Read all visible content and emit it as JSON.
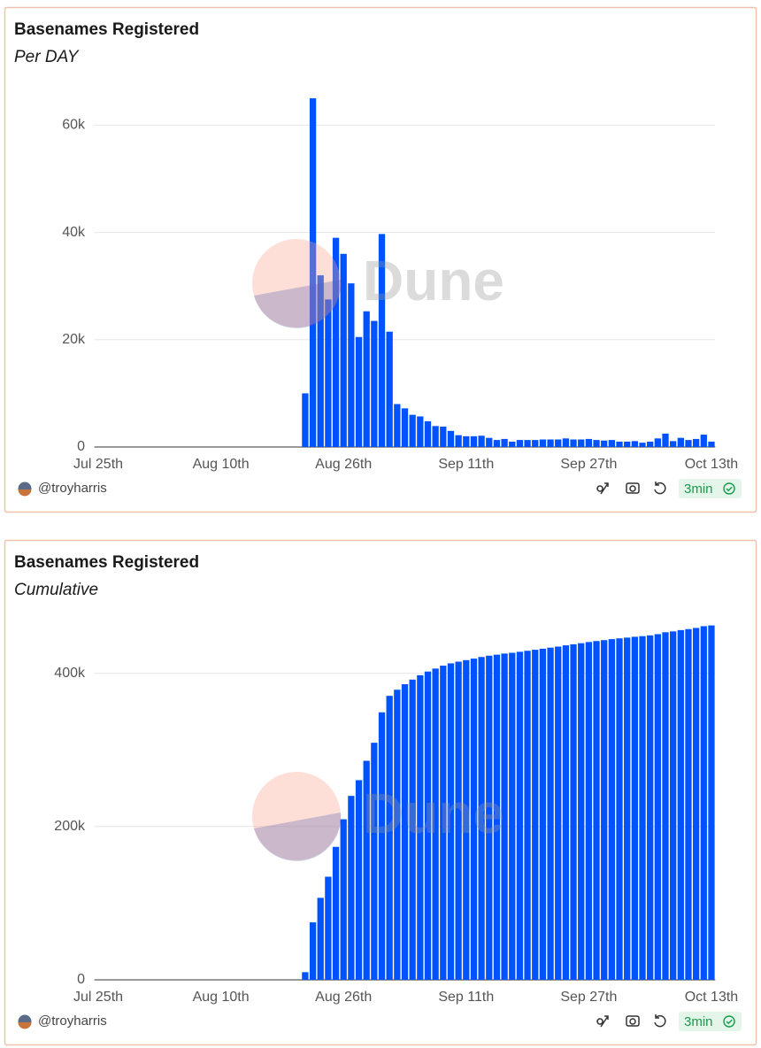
{
  "chart_data": [
    {
      "type": "bar",
      "title": "Basenames Registered",
      "subtitle": "Per DAY",
      "watermark": "Dune",
      "author": "@troyharris",
      "refresh": "3min",
      "color": "#0052ff",
      "grid": true,
      "categories": [
        "Jul 25th",
        null,
        null,
        null,
        null,
        null,
        null,
        null,
        null,
        null,
        null,
        null,
        null,
        null,
        null,
        null,
        "Aug 10th",
        null,
        null,
        null,
        null,
        null,
        null,
        null,
        null,
        null,
        null,
        null,
        null,
        null,
        null,
        null,
        "Aug 26th",
        null,
        null,
        null,
        null,
        null,
        null,
        null,
        null,
        null,
        null,
        null,
        null,
        null,
        null,
        null,
        "Sep 11th",
        null,
        null,
        null,
        null,
        null,
        null,
        null,
        null,
        null,
        null,
        null,
        null,
        null,
        null,
        null,
        "Sep 27th",
        null,
        null,
        null,
        null,
        null,
        null,
        null,
        null,
        null,
        null,
        null,
        null,
        null,
        null,
        null,
        "Oct 13th"
      ],
      "values": [
        0,
        0,
        0,
        0,
        0,
        0,
        0,
        0,
        0,
        0,
        0,
        0,
        0,
        0,
        0,
        0,
        0,
        0,
        0,
        0,
        0,
        0,
        0,
        0,
        0,
        0,
        0,
        10000,
        65000,
        32000,
        27500,
        39000,
        36000,
        30500,
        20500,
        25300,
        23500,
        39700,
        21500,
        8000,
        7200,
        6000,
        5700,
        4800,
        3900,
        3800,
        3000,
        2200,
        2000,
        2000,
        2100,
        1700,
        1300,
        1500,
        1000,
        1300,
        1300,
        1300,
        1400,
        1400,
        1400,
        1600,
        1400,
        1400,
        1500,
        1300,
        1200,
        1300,
        1000,
        1000,
        1100,
        800,
        1000,
        1600,
        2500,
        1100,
        1700,
        1300,
        1500,
        2300,
        1000
      ],
      "ylim": [
        0,
        66000
      ],
      "yticks": [
        0,
        {
          "value": 20000,
          "label": "20k"
        },
        {
          "value": 40000,
          "label": "40k"
        },
        {
          "value": 60000,
          "label": "60k"
        }
      ]
    },
    {
      "type": "bar",
      "title": "Basenames Registered",
      "subtitle": "Cumulative",
      "watermark": "Dune",
      "author": "@troyharris",
      "refresh": "3min",
      "color": "#0052ff",
      "grid": true,
      "categories": [
        "Jul 25th",
        null,
        null,
        null,
        null,
        null,
        null,
        null,
        null,
        null,
        null,
        null,
        null,
        null,
        null,
        null,
        "Aug 10th",
        null,
        null,
        null,
        null,
        null,
        null,
        null,
        null,
        null,
        null,
        null,
        null,
        null,
        null,
        null,
        "Aug 26th",
        null,
        null,
        null,
        null,
        null,
        null,
        null,
        null,
        null,
        null,
        null,
        null,
        null,
        null,
        null,
        "Sep 11th",
        null,
        null,
        null,
        null,
        null,
        null,
        null,
        null,
        null,
        null,
        null,
        null,
        null,
        null,
        null,
        "Sep 27th",
        null,
        null,
        null,
        null,
        null,
        null,
        null,
        null,
        null,
        null,
        null,
        null,
        null,
        null,
        null,
        "Oct 13th"
      ],
      "values": [
        0,
        0,
        0,
        0,
        0,
        0,
        0,
        0,
        0,
        0,
        0,
        0,
        0,
        0,
        0,
        0,
        0,
        0,
        0,
        0,
        0,
        0,
        0,
        0,
        0,
        0,
        0,
        10000,
        75000,
        107000,
        134500,
        173500,
        209500,
        240000,
        260500,
        285800,
        309300,
        349000,
        370500,
        378500,
        385700,
        391700,
        397400,
        402200,
        406100,
        409900,
        412900,
        415100,
        417100,
        419100,
        421200,
        422900,
        424200,
        425700,
        426700,
        428000,
        429300,
        430600,
        432000,
        433400,
        434800,
        436400,
        437800,
        439200,
        440700,
        442000,
        443200,
        444500,
        445500,
        446500,
        447600,
        448400,
        449400,
        451000,
        453500,
        454600,
        456300,
        457600,
        459100,
        461400,
        462400
      ],
      "ylim": [
        0,
        470000
      ],
      "yticks": [
        0,
        {
          "value": 200000,
          "label": "200k"
        },
        {
          "value": 400000,
          "label": "400k"
        }
      ]
    }
  ]
}
